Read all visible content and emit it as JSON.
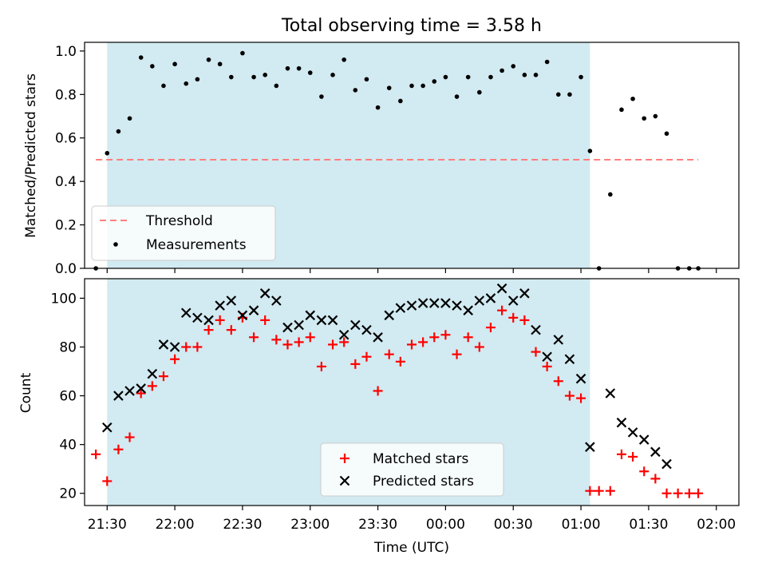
{
  "chart_data": [
    {
      "type": "scatter",
      "title": "Total observing time = 3.58 h",
      "xlabel": "",
      "ylabel": "Matched/Predicted stars",
      "xlim": [
        "21:20",
        "02:10"
      ],
      "ylim": [
        0,
        1.04
      ],
      "yticks": [
        0.0,
        0.2,
        0.4,
        0.6,
        0.8,
        1.0
      ],
      "ytick_labels": [
        "0.0",
        "0.2",
        "0.4",
        "0.6",
        "0.8",
        "1.0"
      ],
      "observing_window": [
        "21:30",
        "01:04"
      ],
      "threshold": {
        "name": "Threshold",
        "value": 0.5,
        "x_range": [
          "21:25",
          "01:52"
        ],
        "color": "#ff7f7f"
      },
      "legend": {
        "position": "lower-left",
        "entries": [
          "Threshold",
          "Measurements"
        ]
      },
      "series": [
        {
          "name": "Measurements",
          "color": "#000000",
          "marker": "dot",
          "x": [
            "21:25",
            "21:30",
            "21:35",
            "21:40",
            "21:45",
            "21:50",
            "21:55",
            "22:00",
            "22:05",
            "22:10",
            "22:15",
            "22:20",
            "22:25",
            "22:30",
            "22:35",
            "22:40",
            "22:45",
            "22:50",
            "22:55",
            "23:00",
            "23:05",
            "23:10",
            "23:15",
            "23:20",
            "23:25",
            "23:30",
            "23:35",
            "23:40",
            "23:45",
            "23:50",
            "23:55",
            "00:00",
            "00:05",
            "00:10",
            "00:15",
            "00:20",
            "00:25",
            "00:30",
            "00:35",
            "00:40",
            "00:45",
            "00:50",
            "00:55",
            "01:00",
            "01:04",
            "01:08",
            "01:13",
            "01:18",
            "01:23",
            "01:28",
            "01:33",
            "01:38",
            "01:43",
            "01:48",
            "01:52"
          ],
          "y": [
            0.0,
            0.53,
            0.63,
            0.69,
            0.97,
            0.93,
            0.84,
            0.94,
            0.85,
            0.87,
            0.96,
            0.94,
            0.88,
            0.99,
            0.88,
            0.89,
            0.84,
            0.92,
            0.92,
            0.9,
            0.79,
            0.89,
            0.96,
            0.82,
            0.87,
            0.74,
            0.83,
            0.77,
            0.84,
            0.84,
            0.86,
            0.88,
            0.79,
            0.88,
            0.81,
            0.88,
            0.91,
            0.93,
            0.89,
            0.89,
            0.95,
            0.8,
            0.8,
            0.88,
            0.54,
            0.0,
            0.34,
            0.73,
            0.78,
            0.69,
            0.7,
            0.62,
            0.0,
            0.0,
            0.0
          ]
        }
      ]
    },
    {
      "type": "scatter",
      "title": "",
      "xlabel": "Time (UTC)",
      "ylabel": "Count",
      "xlim": [
        "21:20",
        "02:10"
      ],
      "ylim": [
        15,
        108
      ],
      "yticks": [
        20,
        40,
        60,
        80,
        100
      ],
      "xticks": [
        "21:30",
        "22:00",
        "22:30",
        "23:00",
        "23:30",
        "00:00",
        "00:30",
        "01:00",
        "01:30",
        "02:00"
      ],
      "observing_window": [
        "21:30",
        "01:04"
      ],
      "legend": {
        "position": "lower-center",
        "entries": [
          "Matched stars",
          "Predicted stars"
        ]
      },
      "series": [
        {
          "name": "Matched stars",
          "color": "#ff0000",
          "marker": "plus",
          "x": [
            "21:25",
            "21:30",
            "21:35",
            "21:40",
            "21:45",
            "21:50",
            "21:55",
            "22:00",
            "22:05",
            "22:10",
            "22:15",
            "22:20",
            "22:25",
            "22:30",
            "22:35",
            "22:40",
            "22:45",
            "22:50",
            "22:55",
            "23:00",
            "23:05",
            "23:10",
            "23:15",
            "23:20",
            "23:25",
            "23:30",
            "23:35",
            "23:40",
            "23:45",
            "23:50",
            "23:55",
            "00:00",
            "00:05",
            "00:10",
            "00:15",
            "00:20",
            "00:25",
            "00:30",
            "00:35",
            "00:40",
            "00:45",
            "00:50",
            "00:55",
            "01:00",
            "01:04",
            "01:08",
            "01:13",
            "01:18",
            "01:23",
            "01:28",
            "01:33",
            "01:38",
            "01:43",
            "01:48",
            "01:52"
          ],
          "y": [
            36,
            25,
            38,
            43,
            61,
            64,
            68,
            75,
            80,
            80,
            87,
            91,
            87,
            92,
            84,
            91,
            83,
            81,
            82,
            84,
            72,
            81,
            82,
            73,
            76,
            62,
            77,
            74,
            81,
            82,
            84,
            85,
            77,
            84,
            80,
            88,
            95,
            92,
            91,
            78,
            72,
            66,
            60,
            59,
            21,
            21,
            21,
            36,
            35,
            29,
            26,
            20,
            20,
            20,
            20
          ]
        },
        {
          "name": "Predicted stars",
          "color": "#000000",
          "marker": "cross",
          "x": [
            "21:30",
            "21:35",
            "21:40",
            "21:45",
            "21:50",
            "21:55",
            "22:00",
            "22:05",
            "22:10",
            "22:15",
            "22:20",
            "22:25",
            "22:30",
            "22:35",
            "22:40",
            "22:45",
            "22:50",
            "22:55",
            "23:00",
            "23:05",
            "23:10",
            "23:15",
            "23:20",
            "23:25",
            "23:30",
            "23:35",
            "23:40",
            "23:45",
            "23:50",
            "23:55",
            "00:00",
            "00:05",
            "00:10",
            "00:15",
            "00:20",
            "00:25",
            "00:30",
            "00:35",
            "00:40",
            "00:45",
            "00:50",
            "00:55",
            "01:00",
            "01:04",
            "01:13",
            "01:18",
            "01:23",
            "01:28",
            "01:33",
            "01:38"
          ],
          "y": [
            47,
            60,
            62,
            63,
            69,
            81,
            80,
            94,
            92,
            91,
            97,
            99,
            93,
            95,
            102,
            99,
            88,
            89,
            93,
            91,
            91,
            85,
            89,
            87,
            84,
            93,
            96,
            97,
            98,
            98,
            98,
            97,
            95,
            99,
            100,
            104,
            99,
            102,
            87,
            76,
            83,
            75,
            67,
            39,
            61,
            49,
            45,
            42,
            37,
            32
          ]
        }
      ]
    }
  ]
}
